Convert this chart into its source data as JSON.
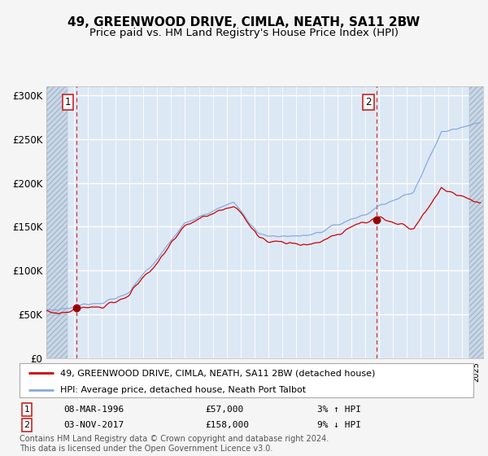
{
  "title": "49, GREENWOOD DRIVE, CIMLA, NEATH, SA11 2BW",
  "subtitle": "Price paid vs. HM Land Registry's House Price Index (HPI)",
  "ylim": [
    0,
    310000
  ],
  "yticks": [
    0,
    50000,
    100000,
    150000,
    200000,
    250000,
    300000
  ],
  "ytick_labels": [
    "£0",
    "£50K",
    "£100K",
    "£150K",
    "£200K",
    "£250K",
    "£300K"
  ],
  "sale1_date": "08-MAR-1996",
  "sale1_price": 57000,
  "sale1_year": 1996.17,
  "sale2_date": "03-NOV-2017",
  "sale2_price": 158000,
  "sale2_year": 2017.84,
  "sale1_hpi_pct": "3% ↑ HPI",
  "sale2_hpi_pct": "9% ↓ HPI",
  "red_line_color": "#cc0000",
  "blue_line_color": "#88aadd",
  "bg_color": "#dde8f5",
  "hatch_bg_color": "#c8d8e8",
  "grid_color": "#ffffff",
  "dashed_line_color": "#cc3333",
  "marker_color": "#990000",
  "legend_label_red": "49, GREENWOOD DRIVE, CIMLA, NEATH, SA11 2BW (detached house)",
  "legend_label_blue": "HPI: Average price, detached house, Neath Port Talbot",
  "footer": "Contains HM Land Registry data © Crown copyright and database right 2024.\nThis data is licensed under the Open Government Licence v3.0.",
  "title_fontsize": 11,
  "subtitle_fontsize": 9.5,
  "axis_fontsize": 8.5,
  "legend_fontsize": 8,
  "footer_fontsize": 7
}
